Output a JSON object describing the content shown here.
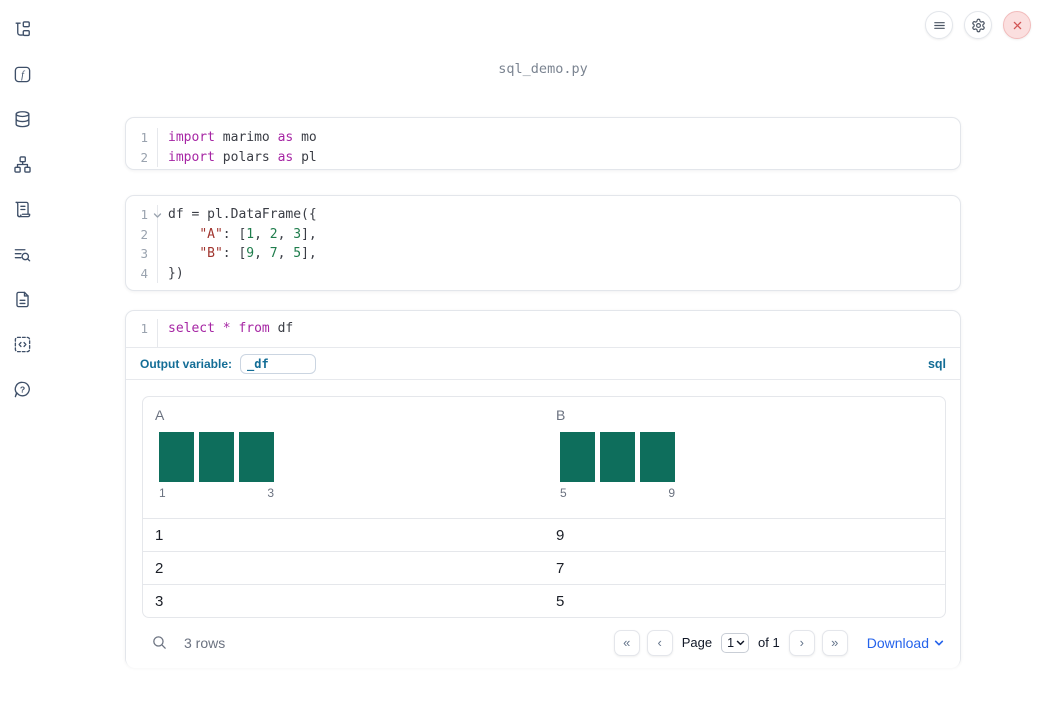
{
  "header": {
    "filename": "sql_demo.py"
  },
  "topbar": {
    "buttons": [
      "menu",
      "settings",
      "shutdown"
    ]
  },
  "sidebar": {
    "items": [
      "file-explorer",
      "variables",
      "data-sources",
      "dependency-graph",
      "logs",
      "outline-search",
      "documentation",
      "snippets",
      "help"
    ]
  },
  "icons": {
    "first_page": "«",
    "prev_page": "‹",
    "next_page": "›",
    "last_page": "»"
  },
  "colors": {
    "accent_teal": "#136d96",
    "link_blue": "#2563eb",
    "bar_color": "#0e6e5c",
    "tok_kw": "#a626a4",
    "tok_str": "#a1352f",
    "tok_num": "#1f7d4c",
    "tok_plain": "#3a3d45",
    "sidebar_icon": "#3e4f68",
    "close_bg": "#fbdfdf",
    "close_x": "#d25555"
  },
  "cells": [
    {
      "name": "imports-cell",
      "lines": [
        {
          "num": "1",
          "tokens": [
            [
              "kw",
              "import"
            ],
            [
              "plain",
              " marimo "
            ],
            [
              "kw",
              "as"
            ],
            [
              "plain",
              " mo"
            ]
          ]
        },
        {
          "num": "2",
          "tokens": [
            [
              "kw",
              "import"
            ],
            [
              "plain",
              " polars "
            ],
            [
              "kw",
              "as"
            ],
            [
              "plain",
              " pl"
            ]
          ]
        }
      ]
    },
    {
      "name": "dataframe-cell",
      "lines": [
        {
          "num": "1",
          "fold": true,
          "tokens": [
            [
              "plain",
              "df = pl.DataFrame({"
            ]
          ]
        },
        {
          "num": "2",
          "tokens": [
            [
              "plain",
              "    "
            ],
            [
              "str",
              "\"A\""
            ],
            [
              "plain",
              ": ["
            ],
            [
              "num",
              "1"
            ],
            [
              "plain",
              ", "
            ],
            [
              "num",
              "2"
            ],
            [
              "plain",
              ", "
            ],
            [
              "num",
              "3"
            ],
            [
              "plain",
              "],"
            ]
          ]
        },
        {
          "num": "3",
          "tokens": [
            [
              "plain",
              "    "
            ],
            [
              "str",
              "\"B\""
            ],
            [
              "plain",
              ": ["
            ],
            [
              "num",
              "9"
            ],
            [
              "plain",
              ", "
            ],
            [
              "num",
              "7"
            ],
            [
              "plain",
              ", "
            ],
            [
              "num",
              "5"
            ],
            [
              "plain",
              "],"
            ]
          ]
        },
        {
          "num": "4",
          "tokens": [
            [
              "plain",
              "})"
            ]
          ]
        }
      ]
    },
    {
      "name": "sql-cell",
      "lines": [
        {
          "num": "1",
          "tokens": [
            [
              "kw",
              "select"
            ],
            [
              "plain",
              " "
            ],
            [
              "kw",
              "*"
            ],
            [
              "plain",
              " "
            ],
            [
              "kw",
              "from"
            ],
            [
              "plain",
              " df"
            ]
          ]
        }
      ]
    }
  ],
  "sql_cell": {
    "output_variable_label": "Output variable:",
    "output_variable_value": "_df",
    "language_badge": "sql"
  },
  "table": {
    "columns": [
      {
        "name": "A",
        "hist": {
          "bars": [
            1,
            1,
            1
          ],
          "min_label": "1",
          "max_label": "3"
        }
      },
      {
        "name": "B",
        "hist": {
          "bars": [
            1,
            1,
            1
          ],
          "min_label": "5",
          "max_label": "9"
        }
      }
    ],
    "rows": [
      [
        "1",
        "9"
      ],
      [
        "2",
        "7"
      ],
      [
        "3",
        "5"
      ]
    ],
    "footer": {
      "row_count": "3 rows",
      "page_label": "Page",
      "page_value": "1",
      "of_label": "of 1",
      "download_label": "Download"
    }
  }
}
